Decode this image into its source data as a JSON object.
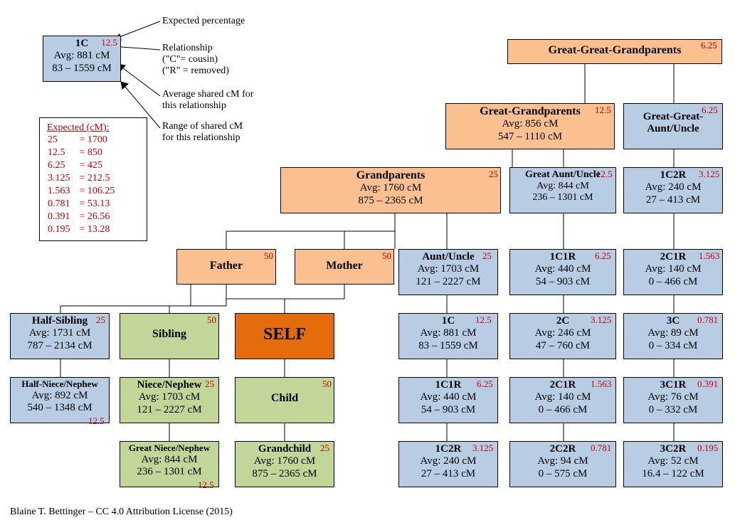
{
  "colors": {
    "blue": "#b8cce4",
    "gold": "#fac090",
    "green": "#c2d69a",
    "orange": "#e46c0a",
    "red": "#c00000"
  },
  "credit": "Blaine T. Bettinger – CC 4.0 Attribution License (2015)",
  "annotations": {
    "expected_pct": "Expected percentage",
    "relationship": "Relationship",
    "rel_c": "(\"C\"= cousin)",
    "rel_r": "(\"R\" = removed)",
    "avg_shared": "Average shared cM for",
    "avg_shared2": "this relationship",
    "range_shared": "Range of shared cM",
    "range_shared2": "for this relationship"
  },
  "expected_table": {
    "header": "Expected (cM):",
    "rows": [
      {
        "p": "25",
        "v": "1700"
      },
      {
        "p": "12.5",
        "v": "850"
      },
      {
        "p": "6.25",
        "v": "425"
      },
      {
        "p": "3.125",
        "v": "212.5"
      },
      {
        "p": "1.563",
        "v": "106.25"
      },
      {
        "p": "0.781",
        "v": "53.13"
      },
      {
        "p": "0.391",
        "v": "26.56"
      },
      {
        "p": "0.195",
        "v": "13.28"
      }
    ]
  },
  "legend_box": {
    "title": "1C",
    "pct": "12.5",
    "avg": "Avg: 881 cM",
    "range": "83 – 1559 cM"
  },
  "nodes": {
    "gggp": {
      "title": "Great-Great-Grandparents",
      "pct": "6.25"
    },
    "ggp": {
      "title": "Great-Grandparents",
      "pct": "12.5",
      "avg": "Avg: 856 cM",
      "range": "547 – 1110 cM"
    },
    "ggau": {
      "title": "Great-Great-",
      "title2": "Aunt/Uncle",
      "pct": "6.25"
    },
    "gp": {
      "title": "Grandparents",
      "pct": "25",
      "avg": "Avg: 1760 cM",
      "range": "875 – 2365 cM"
    },
    "gau": {
      "title": "Great Aunt/Uncle",
      "pct": "12.5",
      "avg": "Avg: 844 cM",
      "range": "236 – 1301 cM"
    },
    "c1c2r_top": {
      "title": "1C2R",
      "pct": "3.125",
      "avg": "Avg: 240 cM",
      "range": "27 – 413 cM"
    },
    "father": {
      "title": "Father",
      "pct": "50"
    },
    "mother": {
      "title": "Mother",
      "pct": "50"
    },
    "au": {
      "title": "Aunt/Uncle",
      "pct": "25",
      "avg": "Avg: 1703 cM",
      "range": "121 – 2227 cM"
    },
    "c1c1r_top": {
      "title": "1C1R",
      "pct": "6.25",
      "avg": "Avg: 440 cM",
      "range": "54 – 903 cM"
    },
    "c2c1r_top": {
      "title": "2C1R",
      "pct": "1.563",
      "avg": "Avg: 140 cM",
      "range": "0 – 466 cM"
    },
    "halfsib": {
      "title": "Half-Sibling",
      "pct": "25",
      "avg": "Avg: 1731 cM",
      "range": "787 – 2134 cM"
    },
    "sibling": {
      "title": "Sibling",
      "pct": "50"
    },
    "self": {
      "title": "SELF"
    },
    "c1c": {
      "title": "1C",
      "pct": "12.5",
      "avg": "Avg: 881 cM",
      "range": "83 – 1559 cM"
    },
    "c2c": {
      "title": "2C",
      "pct": "3.125",
      "avg": "Avg: 246 cM",
      "range": "47 – 760 cM"
    },
    "c3c": {
      "title": "3C",
      "pct": "0.781",
      "avg": "Avg: 89 cM",
      "range": "0 – 334 cM"
    },
    "halfnn": {
      "title": "Half-Niece/Nephew",
      "pct": "12.5",
      "avg": "Avg: 892 cM",
      "range": "540 – 1348 cM"
    },
    "nn": {
      "title": "Niece/Nephew",
      "pct": "25",
      "avg": "Avg: 1703 cM",
      "range": "121 – 2227 cM"
    },
    "child": {
      "title": "Child",
      "pct": "50"
    },
    "c1c1r": {
      "title": "1C1R",
      "pct": "6.25",
      "avg": "Avg: 440 cM",
      "range": "54 – 903 cM"
    },
    "c2c1r": {
      "title": "2C1R",
      "pct": "1.563",
      "avg": "Avg: 140 cM",
      "range": "0 – 466 cM"
    },
    "c3c1r": {
      "title": "3C1R",
      "pct": "0.391",
      "avg": "Avg: 76 cM",
      "range": "0 – 332 cM"
    },
    "gnn": {
      "title": "Great Niece/Nephew",
      "pct": "12.5",
      "avg": "Avg: 844 cM",
      "range": "236 – 1301 cM"
    },
    "gchild": {
      "title": "Grandchild",
      "pct": "25",
      "avg": "Avg: 1760 cM",
      "range": "875 – 2365 cM"
    },
    "c1c2r": {
      "title": "1C2R",
      "pct": "3.125",
      "avg": "Avg: 240 cM",
      "range": "27 – 413 cM"
    },
    "c2c2r": {
      "title": "2C2R",
      "pct": "0.781",
      "avg": "Avg: 94 cM",
      "range": "0 – 575 cM"
    },
    "c3c2r": {
      "title": "3C2R",
      "pct": "0.195",
      "avg": "Avg: 52 cM",
      "range": "16.4 – 122 cM"
    }
  }
}
